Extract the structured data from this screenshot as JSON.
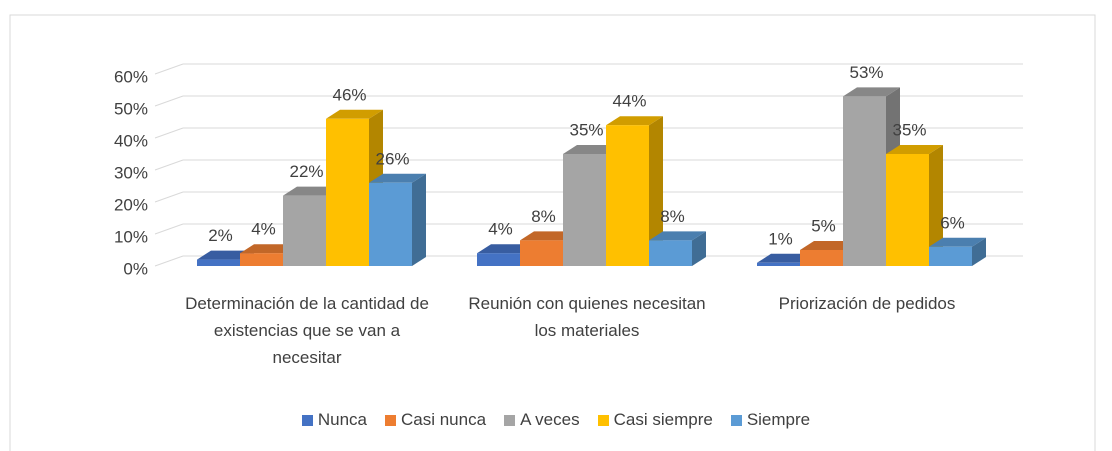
{
  "chart_data": {
    "type": "bar3d",
    "categories": [
      "Determinación de la cantidad de existencias que se van a necesitar",
      "Reunión con quienes necesitan los materiales",
      "Priorización de pedidos"
    ],
    "series": [
      {
        "name": "Nunca",
        "color": "#4472c4",
        "values": [
          2,
          4,
          1
        ],
        "value_labels": [
          "2%",
          "4%",
          "1%"
        ]
      },
      {
        "name": "Casi nunca",
        "color": "#ed7d31",
        "values": [
          4,
          8,
          5
        ],
        "value_labels": [
          "4%",
          "8%",
          "5%"
        ]
      },
      {
        "name": "A veces",
        "color": "#a5a5a5",
        "values": [
          22,
          35,
          53
        ],
        "value_labels": [
          "22%",
          "35%",
          "53%"
        ]
      },
      {
        "name": "Casi siempre",
        "color": "#ffc000",
        "values": [
          46,
          44,
          35
        ],
        "value_labels": [
          "46%",
          "44%",
          "35%"
        ]
      },
      {
        "name": "Siempre",
        "color": "#5b9bd5",
        "values": [
          26,
          8,
          6
        ],
        "value_labels": [
          "26%",
          "8%",
          "6%"
        ]
      }
    ],
    "ylim": [
      0,
      60
    ],
    "yticks": [
      {
        "value": 0,
        "label": "0%"
      },
      {
        "value": 10,
        "label": "10%"
      },
      {
        "value": 20,
        "label": "20%"
      },
      {
        "value": 30,
        "label": "30%"
      },
      {
        "value": 40,
        "label": "40%"
      },
      {
        "value": 50,
        "label": "50%"
      },
      {
        "value": 60,
        "label": "60%"
      }
    ],
    "grid": true,
    "legend": "bottom"
  }
}
